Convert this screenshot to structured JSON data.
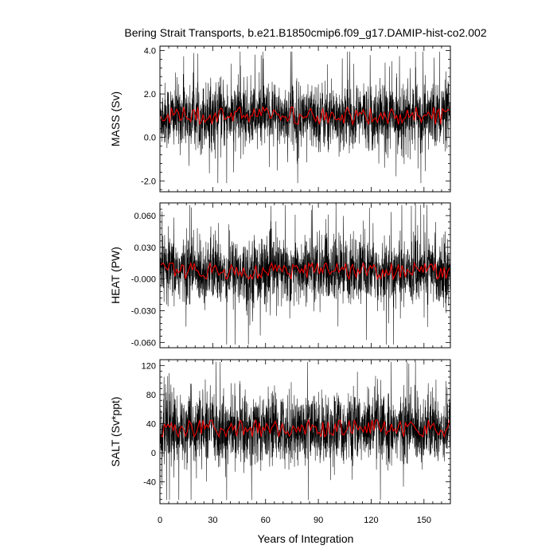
{
  "title": "Bering Strait Transports, b.e21.B1850cmip6.f09_g17.DAMIP-hist-co2.002",
  "xlabel": "Years of Integration",
  "colors": {
    "raw": "#000000",
    "smoothed": "#ff0000",
    "axis": "#000000"
  },
  "chart_data": [
    {
      "type": "line",
      "ylabel": "MASS (Sv)",
      "xlim": [
        0,
        165
      ],
      "ylim": [
        -2.5,
        4.2
      ],
      "xticks": [
        0,
        30,
        60,
        90,
        120,
        150
      ],
      "xtick_labels": [
        "0",
        "30",
        "60",
        "90",
        "120",
        "150"
      ],
      "yticks": [
        -2.0,
        0.0,
        2.0,
        4.0
      ],
      "ytick_labels": [
        "-2.0",
        "0.0",
        "2.0",
        "4.0"
      ],
      "grid": false,
      "series": [
        {
          "kind": "monthly",
          "mean": 1.0,
          "spread": 0.75,
          "min": -2.1,
          "max": 3.95
        },
        {
          "kind": "annual-mean",
          "mean": 1.0,
          "range": [
            0.6,
            1.4
          ]
        }
      ]
    },
    {
      "type": "line",
      "ylabel": "HEAT (PW)",
      "xlim": [
        0,
        165
      ],
      "ylim": [
        -0.065,
        0.072
      ],
      "xticks": [
        0,
        30,
        60,
        90,
        120,
        150
      ],
      "xtick_labels": [
        "0",
        "30",
        "60",
        "90",
        "120",
        "150"
      ],
      "yticks": [
        -0.06,
        -0.03,
        0.0,
        0.03,
        0.06
      ],
      "ytick_labels": [
        "-0.060",
        "-0.030",
        "-0.000",
        "0.030",
        "0.060"
      ],
      "grid": false,
      "series": [
        {
          "kind": "monthly",
          "mean": 0.008,
          "spread": 0.016,
          "min": -0.062,
          "max": 0.07
        },
        {
          "kind": "annual-mean",
          "mean": 0.006,
          "range": [
            0.0,
            0.015
          ]
        }
      ]
    },
    {
      "type": "line",
      "ylabel": "SALT (Sv*ppt)",
      "xlim": [
        0,
        165
      ],
      "ylim": [
        -70,
        128
      ],
      "xticks": [
        0,
        30,
        60,
        90,
        120,
        150
      ],
      "xtick_labels": [
        "0",
        "30",
        "60",
        "90",
        "120",
        "150"
      ],
      "yticks": [
        -40,
        0,
        40,
        80,
        120
      ],
      "ytick_labels": [
        "-40",
        "0",
        "40",
        "80",
        "120"
      ],
      "grid": false,
      "series": [
        {
          "kind": "monthly",
          "mean": 33,
          "spread": 24,
          "min": -65,
          "max": 125
        },
        {
          "kind": "annual-mean",
          "mean": 33,
          "range": [
            22,
            45
          ]
        }
      ]
    }
  ]
}
